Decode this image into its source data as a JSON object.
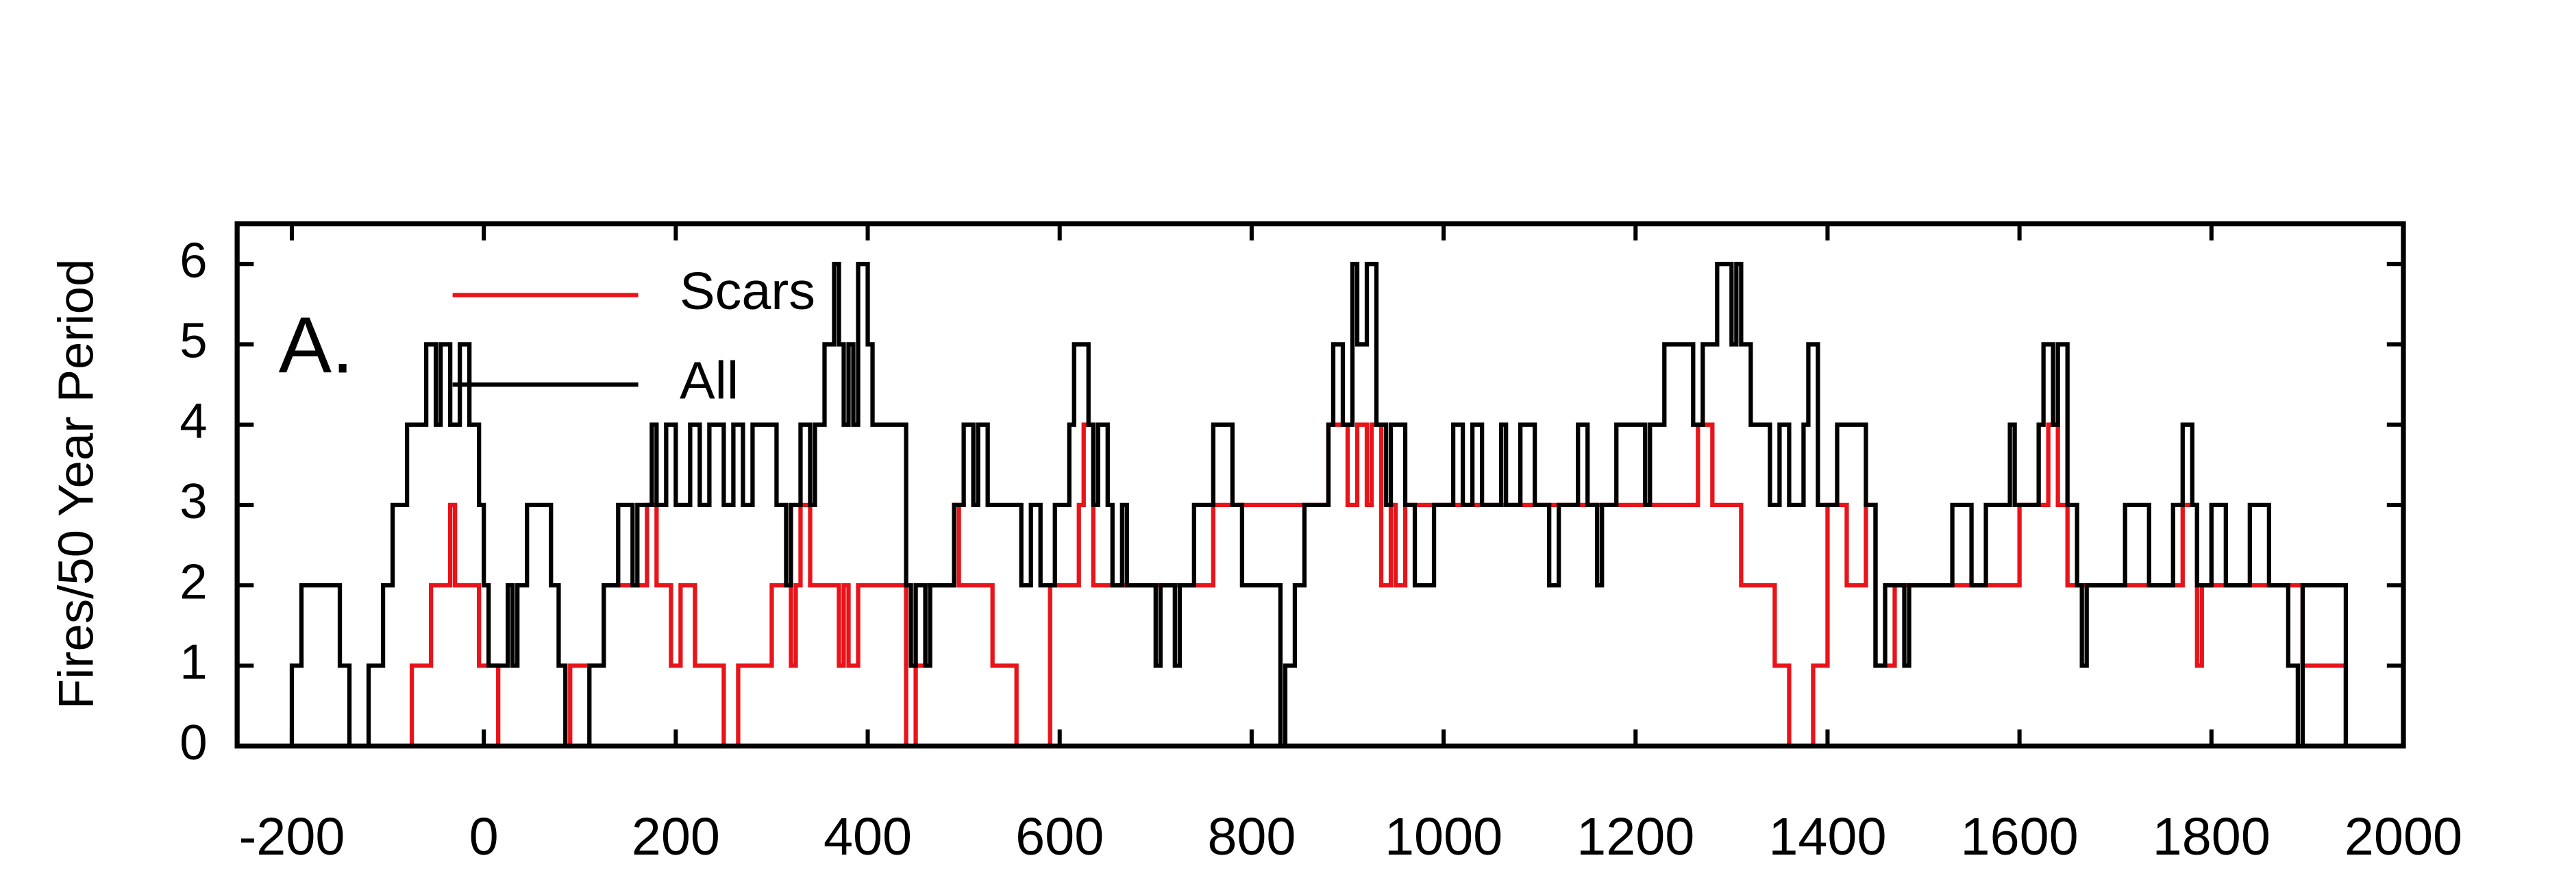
{
  "chart_data": {
    "type": "step",
    "annotation": "A.",
    "y_label": "Fires/50 Year Period",
    "xlim": [
      -257,
      2000
    ],
    "ylim": [
      0,
      6.5
    ],
    "xticks": [
      -200,
      0,
      200,
      400,
      600,
      800,
      1000,
      1200,
      1400,
      1600,
      1800,
      2000
    ],
    "yticks": [
      0,
      1,
      2,
      3,
      4,
      5,
      6
    ],
    "legend": "upper left",
    "series": [
      {
        "name": "Scars",
        "color": "#e8141a",
        "x": [
          -205,
          -75,
          -55,
          -35,
          -30,
          -5,
          15,
          90,
          125,
          170,
          180,
          195,
          205,
          220,
          250,
          265,
          300,
          320,
          325,
          330,
          340,
          370,
          375,
          380,
          390,
          440,
          450,
          460,
          490,
          495,
          530,
          555,
          590,
          620,
          625,
          635,
          650,
          700,
          760,
          880,
          900,
          910,
          920,
          925,
          935,
          945,
          950,
          960,
          1265,
          1280,
          1310,
          1345,
          1360,
          1385,
          1400,
          1420,
          1440,
          1450,
          1470,
          1600,
          1630,
          1640,
          1650,
          1770,
          1785,
          1790,
          1895,
          1940
        ],
        "values": [
          0,
          1,
          2,
          3,
          2,
          1,
          0,
          1,
          2,
          3,
          2,
          1,
          2,
          1,
          0,
          1,
          2,
          1,
          2,
          3,
          2,
          1,
          2,
          1,
          2,
          0,
          1,
          2,
          3,
          2,
          1,
          0,
          2,
          3,
          4,
          2,
          2,
          2,
          3,
          4,
          3,
          4,
          3,
          4,
          2,
          3,
          2,
          3,
          4,
          3,
          2,
          1,
          0,
          1,
          3,
          2,
          3,
          1,
          2,
          3,
          4,
          3,
          2,
          3,
          1,
          2,
          1,
          0
        ]
      },
      {
        "name": "All",
        "color": "#000000",
        "x": [
          -205,
          -200,
          -190,
          -150,
          -140,
          -120,
          -105,
          -95,
          -80,
          -60,
          -50,
          -45,
          -35,
          -25,
          -15,
          -5,
          0,
          5,
          25,
          30,
          35,
          45,
          70,
          78,
          85,
          110,
          125,
          140,
          155,
          160,
          175,
          180,
          190,
          200,
          215,
          225,
          235,
          250,
          260,
          270,
          280,
          305,
          315,
          320,
          330,
          340,
          345,
          355,
          365,
          370,
          375,
          380,
          385,
          390,
          400,
          405,
          440,
          445,
          450,
          460,
          465,
          490,
          500,
          510,
          515,
          525,
          560,
          570,
          580,
          595,
          610,
          615,
          630,
          635,
          640,
          650,
          655,
          665,
          670,
          700,
          705,
          720,
          725,
          740,
          760,
          780,
          790,
          830,
          835,
          845,
          855,
          880,
          885,
          895,
          905,
          910,
          920,
          930,
          940,
          945,
          960,
          970,
          990,
          1010,
          1020,
          1030,
          1040,
          1060,
          1065,
          1080,
          1095,
          1110,
          1120,
          1140,
          1150,
          1160,
          1165,
          1180,
          1210,
          1215,
          1230,
          1260,
          1270,
          1285,
          1300,
          1305,
          1310,
          1320,
          1340,
          1350,
          1360,
          1375,
          1380,
          1390,
          1410,
          1440,
          1450,
          1460,
          1480,
          1485,
          1530,
          1550,
          1565,
          1590,
          1595,
          1620,
          1625,
          1635,
          1640,
          1650,
          1660,
          1665,
          1670,
          1710,
          1735,
          1760,
          1770,
          1780,
          1785,
          1800,
          1815,
          1840,
          1860,
          1880,
          1890,
          1895,
          1940
        ],
        "values": [
          0,
          1,
          2,
          1,
          0,
          1,
          2,
          3,
          4,
          5,
          4,
          5,
          4,
          5,
          4,
          3,
          2,
          1,
          2,
          1,
          2,
          3,
          2,
          1,
          0,
          1,
          2,
          3,
          2,
          3,
          4,
          3,
          4,
          3,
          4,
          3,
          4,
          3,
          4,
          3,
          4,
          3,
          2,
          3,
          4,
          3,
          4,
          5,
          6,
          5,
          4,
          5,
          4,
          6,
          5,
          4,
          2,
          1,
          2,
          1,
          2,
          3,
          4,
          3,
          4,
          3,
          2,
          3,
          2,
          3,
          4,
          5,
          4,
          3,
          4,
          3,
          2,
          3,
          2,
          1,
          2,
          1,
          2,
          3,
          4,
          3,
          2,
          0,
          1,
          2,
          3,
          4,
          5,
          4,
          6,
          5,
          6,
          4,
          3,
          4,
          3,
          2,
          3,
          4,
          3,
          4,
          3,
          4,
          3,
          4,
          3,
          2,
          3,
          4,
          3,
          2,
          3,
          4,
          3,
          4,
          5,
          4,
          5,
          6,
          5,
          6,
          5,
          4,
          3,
          4,
          3,
          4,
          5,
          3,
          4,
          3,
          1,
          2,
          1,
          2,
          3,
          2,
          3,
          4,
          3,
          4,
          5,
          4,
          5,
          3,
          2,
          1,
          2,
          3,
          2,
          3,
          4,
          3,
          2,
          3,
          2,
          3,
          2,
          1,
          0,
          2,
          0
        ]
      }
    ]
  }
}
